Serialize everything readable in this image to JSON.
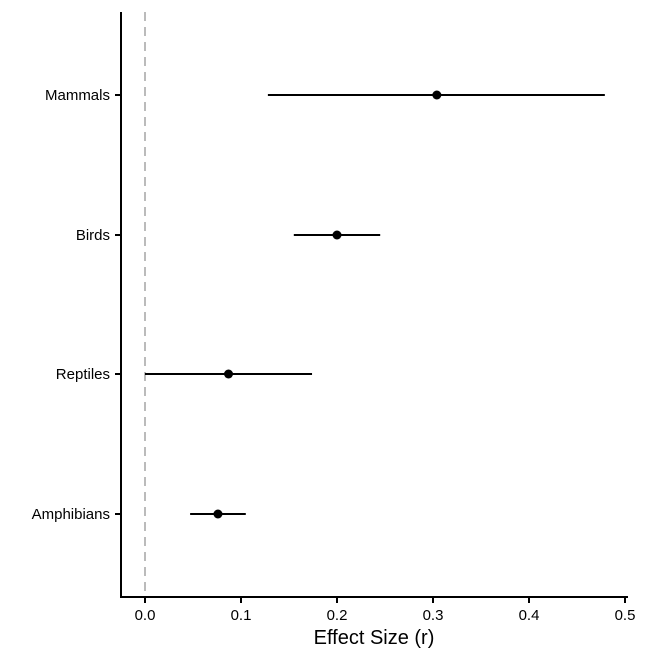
{
  "chart_data": {
    "type": "scatter",
    "xlabel": "Effect Size (r)",
    "ylabel": "",
    "xlim": [
      -0.025,
      0.505
    ],
    "xticks": [
      0.0,
      0.1,
      0.2,
      0.3,
      0.4,
      0.5
    ],
    "xtick_labels": [
      "0.0",
      "0.1",
      "0.2",
      "0.3",
      "0.4",
      "0.5"
    ],
    "reference_line": {
      "x": 0,
      "style": "dashed",
      "color": "#bbbbbb"
    },
    "categories": [
      "Mammals",
      "Birds",
      "Reptiles",
      "Amphibians"
    ],
    "estimates": [
      0.304,
      0.2,
      0.087,
      0.076
    ],
    "ci_lower": [
      0.128,
      0.155,
      0.0,
      0.047
    ],
    "ci_upper": [
      0.479,
      0.245,
      0.174,
      0.105
    ],
    "grid": false,
    "legend": "none",
    "point_color": "#000000"
  }
}
